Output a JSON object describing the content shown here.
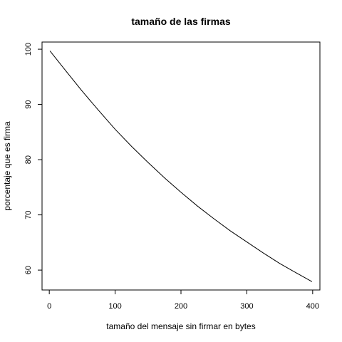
{
  "chart_data": {
    "type": "line",
    "title": "tamaño de las firmas",
    "xlabel": "tamaño del mensaje sin firmar en bytes",
    "ylabel": "porcentaje que es firma",
    "xlim": [
      -11,
      411
    ],
    "ylim": [
      56.4,
      101.3
    ],
    "x_ticks": [
      0,
      100,
      200,
      300,
      400
    ],
    "y_ticks": [
      60,
      70,
      80,
      90,
      100
    ],
    "grid": false,
    "legend": "none",
    "series": [
      {
        "x": [
          1,
          25,
          50,
          75,
          100,
          125,
          150,
          175,
          200,
          225,
          250,
          275,
          300,
          325,
          350,
          375,
          399
        ],
        "values": [
          99.7,
          96.1,
          92.4,
          88.9,
          85.5,
          82.4,
          79.5,
          76.7,
          74.1,
          71.6,
          69.3,
          67.1,
          65.1,
          63.1,
          61.2,
          59.5,
          57.9
        ]
      }
    ]
  }
}
